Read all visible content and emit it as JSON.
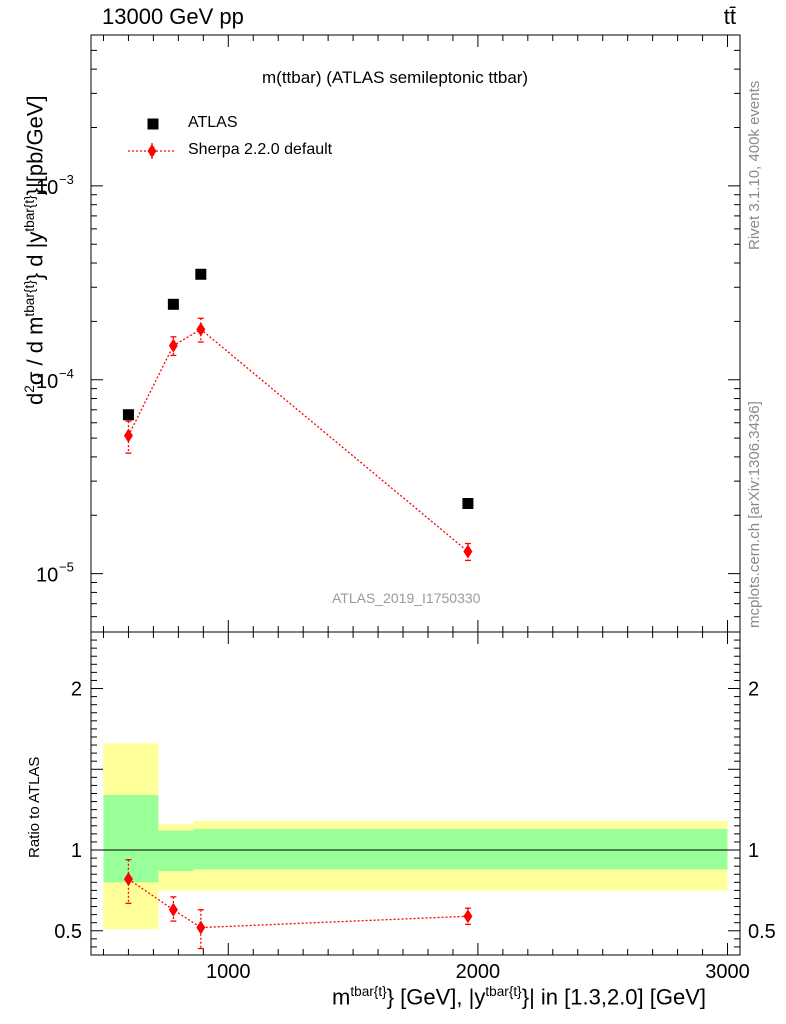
{
  "header": {
    "left": "13000 GeV pp",
    "right": "tt̄"
  },
  "title": "m(ttbar) (ATLAS semileptonic ttbar)",
  "watermark": "ATLAS_2019_I1750330",
  "side_labels": {
    "top": "Rivet 3.1.10,  400k events",
    "bottom": "mcplots.cern.ch [arXiv:1306.3436]"
  },
  "colors": {
    "data": "#000000",
    "mc": "#ff0000",
    "band_outer": "#ffff99",
    "band_inner": "#99ff99"
  },
  "chart_data": [
    {
      "type": "scatter",
      "ylabel": "d²σ / d m^{tbar{t}} d |y^{tbar{t}}|[pb/GeV]",
      "ylabel_parts": {
        "a": "d",
        "b": "2",
        "c": "σ / d m",
        "d": "tbar{t}",
        "e": "} d |y",
        "f": "tbar{t}",
        "g": "}|[pb/GeV]"
      },
      "yscale": "log",
      "xlim": [
        450,
        3050
      ],
      "ylim": [
        5e-06,
        0.006
      ],
      "y_ticks": [
        {
          "value": 0.001,
          "mantissa": "10",
          "exp": "−3"
        },
        {
          "value": 0.0001,
          "mantissa": "10",
          "exp": "−4"
        },
        {
          "value": 1e-05,
          "mantissa": "10",
          "exp": "−5"
        }
      ],
      "series": [
        {
          "name": "ATLAS",
          "marker": "square",
          "x": [
            600,
            780,
            890,
            1960
          ],
          "y": [
            6.6e-05,
            0.000245,
            0.00035,
            2.3e-05
          ]
        },
        {
          "name": "Sherpa 2.2.0 default",
          "marker": "diamond",
          "x": [
            600,
            780,
            890,
            1960
          ],
          "y": [
            5.15e-05,
            0.00015,
            0.000182,
            1.3e-05
          ],
          "yerr_low": [
            9.68e-06,
            1.65e-05,
            2.55e-05,
            1.3e-06
          ],
          "yerr_high": [
            9.68e-06,
            1.65e-05,
            2.55e-05,
            1.3e-06
          ]
        }
      ]
    },
    {
      "type": "scatter",
      "ylabel": "Ratio to ATLAS",
      "xlabel_parts": {
        "a": "m",
        "b": "tbar{t}",
        "c": "} [GeV], |y",
        "d": "tbar{t}",
        "e": "}| in [1.3,2.0] [GeV]"
      },
      "xlim": [
        450,
        3050
      ],
      "ylim": [
        0.35,
        2.35
      ],
      "x_ticks": [
        1000,
        2000,
        3000
      ],
      "y_ticks": [
        0.5,
        1,
        2
      ],
      "reference_line": 1,
      "bands": [
        {
          "x0": 500,
          "x1": 720,
          "outer": [
            0.51,
            1.66
          ],
          "inner": [
            0.8,
            1.34
          ]
        },
        {
          "x0": 720,
          "x1": 860,
          "outer": [
            0.75,
            1.16
          ],
          "inner": [
            0.87,
            1.12
          ]
        },
        {
          "x0": 860,
          "x1": 3000,
          "outer": [
            0.75,
            1.18
          ],
          "inner": [
            0.88,
            1.13
          ]
        }
      ],
      "series": [
        {
          "name": "Sherpa 2.2.0 default",
          "x": [
            600,
            780,
            890,
            1960
          ],
          "y": [
            0.82,
            0.63,
            0.52,
            0.59
          ],
          "yerr_low": [
            0.15,
            0.07,
            0.13,
            0.05
          ],
          "yerr_high": [
            0.12,
            0.08,
            0.11,
            0.05
          ]
        }
      ]
    }
  ]
}
